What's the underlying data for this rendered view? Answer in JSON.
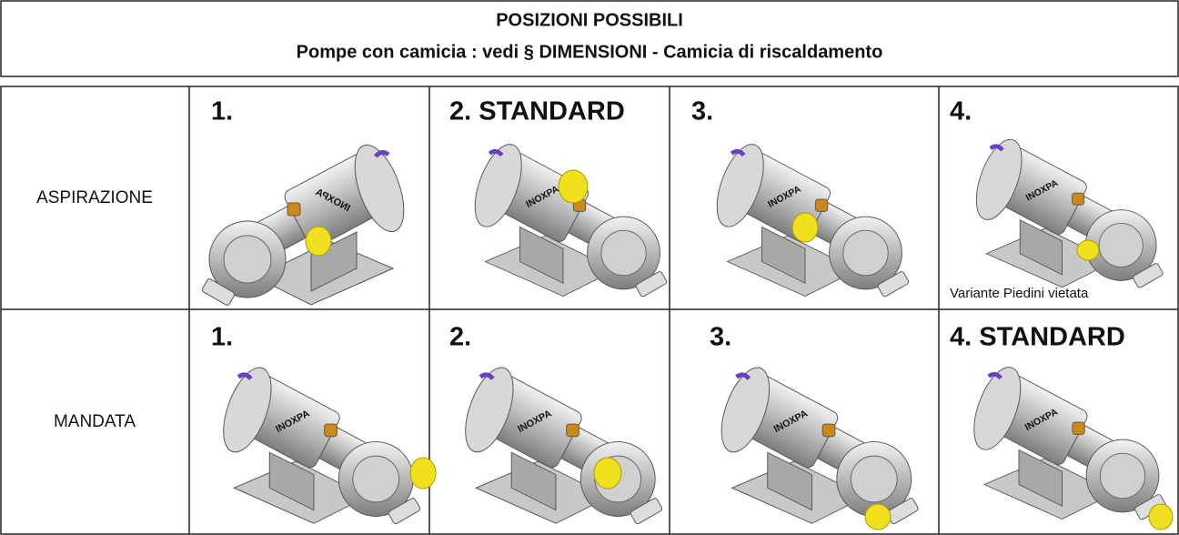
{
  "header": {
    "title": "POSIZIONI POSSIBILI",
    "subtitle": "Pompe con camicia : vedi § DIMENSIONI - Camicia di riscaldamento"
  },
  "table": {
    "rows": [
      {
        "label": "ASPIRAZIONE",
        "cells": [
          {
            "label": "1."
          },
          {
            "label": "2. STANDARD"
          },
          {
            "label": "3."
          },
          {
            "label": "4.",
            "note": "Variante Piedini vietata"
          }
        ]
      },
      {
        "label": "MANDATA",
        "cells": [
          {
            "label": "1."
          },
          {
            "label": "2."
          },
          {
            "label": "3."
          },
          {
            "label": "4. STANDARD"
          }
        ]
      }
    ]
  }
}
